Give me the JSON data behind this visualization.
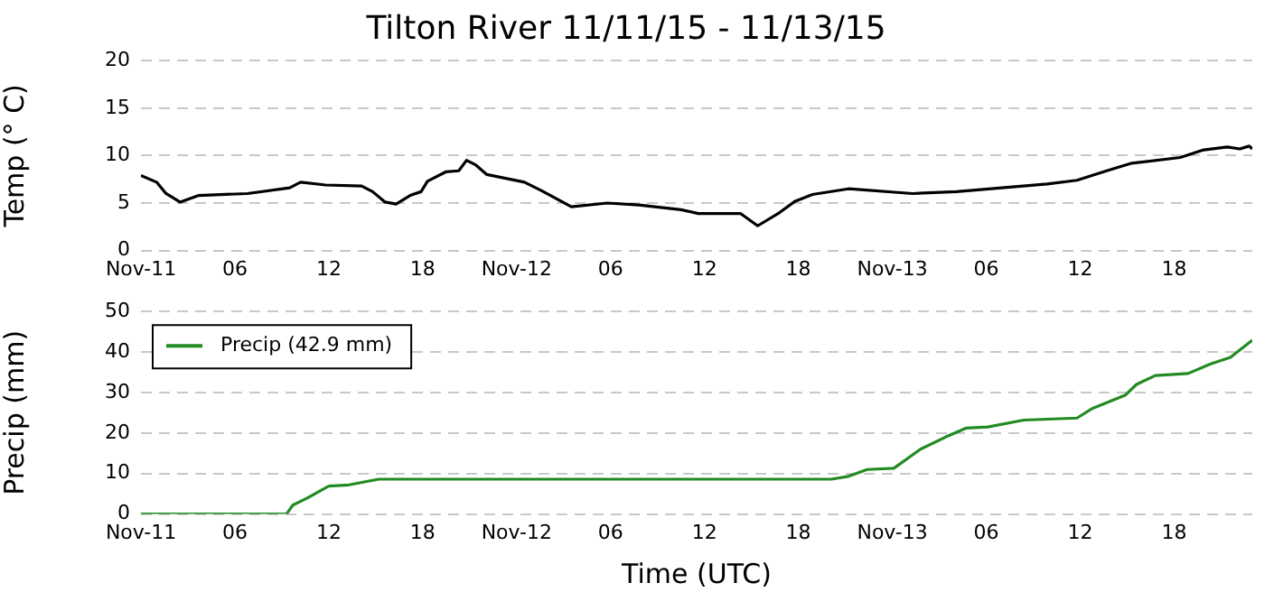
{
  "chart_data": [
    {
      "type": "line",
      "title": "Tilton River 11/11/15 - 11/13/15",
      "ylabel": "Temp (° C)",
      "xlim": [
        "--11-11T00:00",
        "--11-13T23:00"
      ],
      "xticks": [
        {
          "value": "--11-11T00:00",
          "label": "Nov-11"
        },
        {
          "value": "--11-11T06:00",
          "label": "06"
        },
        {
          "value": "--11-11T12:00",
          "label": "12"
        },
        {
          "value": "--11-11T18:00",
          "label": "18"
        },
        {
          "value": "--11-12T00:00",
          "label": "Nov-12"
        },
        {
          "value": "--11-12T06:00",
          "label": "06"
        },
        {
          "value": "--11-12T12:00",
          "label": "12"
        },
        {
          "value": "--11-12T18:00",
          "label": "18"
        },
        {
          "value": "--11-13T00:00",
          "label": "Nov-13"
        },
        {
          "value": "--11-13T06:00",
          "label": "06"
        },
        {
          "value": "--11-13T12:00",
          "label": "12"
        },
        {
          "value": "--11-13T18:00",
          "label": "18"
        }
      ],
      "ylim": [
        0,
        20
      ],
      "yticks": [
        0,
        5,
        10,
        15,
        20
      ],
      "grid": "y",
      "marker": "none",
      "line_style": "solid",
      "legend": false,
      "x": [
        "--11-11T00:00",
        "--11-11T01:00",
        "--11-11T01:36",
        "--11-11T02:30",
        "--11-11T03:42",
        "--11-11T06:48",
        "--11-11T09:30",
        "--11-11T10:12",
        "--11-11T11:48",
        "--11-11T14:06",
        "--11-11T14:48",
        "--11-11T15:36",
        "--11-11T16:18",
        "--11-11T17:12",
        "--11-11T17:54",
        "--11-11T18:18",
        "--11-11T19:30",
        "--11-11T20:18",
        "--11-11T20:48",
        "--11-11T21:24",
        "--11-11T22:06",
        "--11-12T00:30",
        "--11-12T01:36",
        "--11-12T03:30",
        "--11-12T05:48",
        "--11-12T07:48",
        "--11-12T10:30",
        "--11-12T11:36",
        "--11-12T14:18",
        "--11-12T15:24",
        "--11-12T16:48",
        "--11-12T17:48",
        "--11-12T18:54",
        "--11-12T21:12",
        "--11-13T01:18",
        "--11-13T04:06",
        "--11-13T09:54",
        "--11-13T11:48",
        "--11-13T13:42",
        "--11-13T15:18",
        "--11-13T18:24",
        "--11-13T19:54",
        "--11-13T21:24",
        "--11-13T22:12",
        "--11-13T22:48",
        "--11-13T23:00"
      ],
      "series": [
        {
          "color": "#000000",
          "values": [
            7.9,
            7.2,
            6.0,
            5.1,
            5.8,
            6.0,
            6.6,
            7.2,
            6.9,
            6.8,
            6.2,
            5.1,
            4.9,
            5.8,
            6.2,
            7.3,
            8.3,
            8.4,
            9.5,
            9.0,
            8.0,
            7.2,
            6.3,
            4.6,
            5.0,
            4.8,
            4.3,
            3.9,
            3.9,
            2.6,
            4.0,
            5.2,
            5.9,
            6.5,
            6.0,
            6.2,
            7.0,
            7.4,
            8.4,
            9.2,
            9.8,
            10.6,
            10.9,
            10.7,
            11.0,
            10.7
          ]
        }
      ]
    },
    {
      "type": "line",
      "xlabel": "Time (UTC)",
      "ylabel": "Precip (mm)",
      "xlim": [
        "--11-11T00:00",
        "--11-13T23:00"
      ],
      "xticks": [
        {
          "value": "--11-11T00:00",
          "label": "Nov-11"
        },
        {
          "value": "--11-11T06:00",
          "label": "06"
        },
        {
          "value": "--11-11T12:00",
          "label": "12"
        },
        {
          "value": "--11-11T18:00",
          "label": "18"
        },
        {
          "value": "--11-12T00:00",
          "label": "Nov-12"
        },
        {
          "value": "--11-12T06:00",
          "label": "06"
        },
        {
          "value": "--11-12T12:00",
          "label": "12"
        },
        {
          "value": "--11-12T18:00",
          "label": "18"
        },
        {
          "value": "--11-13T00:00",
          "label": "Nov-13"
        },
        {
          "value": "--11-13T06:00",
          "label": "06"
        },
        {
          "value": "--11-13T12:00",
          "label": "12"
        },
        {
          "value": "--11-13T18:00",
          "label": "18"
        }
      ],
      "ylim": [
        0,
        50
      ],
      "yticks": [
        0,
        10,
        20,
        30,
        40,
        50
      ],
      "grid": "y",
      "marker": "none",
      "line_style": "solid",
      "legend": "top left",
      "x": [
        "--11-11T00:00",
        "--11-11T09:18",
        "--11-11T09:42",
        "--11-11T10:36",
        "--11-11T12:00",
        "--11-11T13:18",
        "--11-11T14:30",
        "--11-11T15:12",
        "--11-12T20:06",
        "--11-12T21:12",
        "--11-12T22:24",
        "--11-13T00:06",
        "--11-13T01:48",
        "--11-13T03:24",
        "--11-13T04:42",
        "--11-13T06:06",
        "--11-13T08:24",
        "--11-13T11:48",
        "--11-13T12:48",
        "--11-13T14:54",
        "--11-13T15:36",
        "--11-13T16:48",
        "--11-13T18:54",
        "--11-13T20:18",
        "--11-13T21:36",
        "--11-13T23:00"
      ],
      "series": [
        {
          "name": "Precip (42.9 mm)",
          "color": "#228b22",
          "values": [
            0,
            0,
            2.2,
            3.9,
            6.9,
            7.2,
            8.1,
            8.6,
            8.6,
            9.3,
            11.0,
            11.3,
            16.0,
            19.0,
            21.2,
            21.5,
            23.2,
            23.7,
            26.1,
            29.4,
            32.0,
            34.2,
            34.7,
            37.0,
            38.7,
            42.9
          ]
        }
      ]
    }
  ]
}
